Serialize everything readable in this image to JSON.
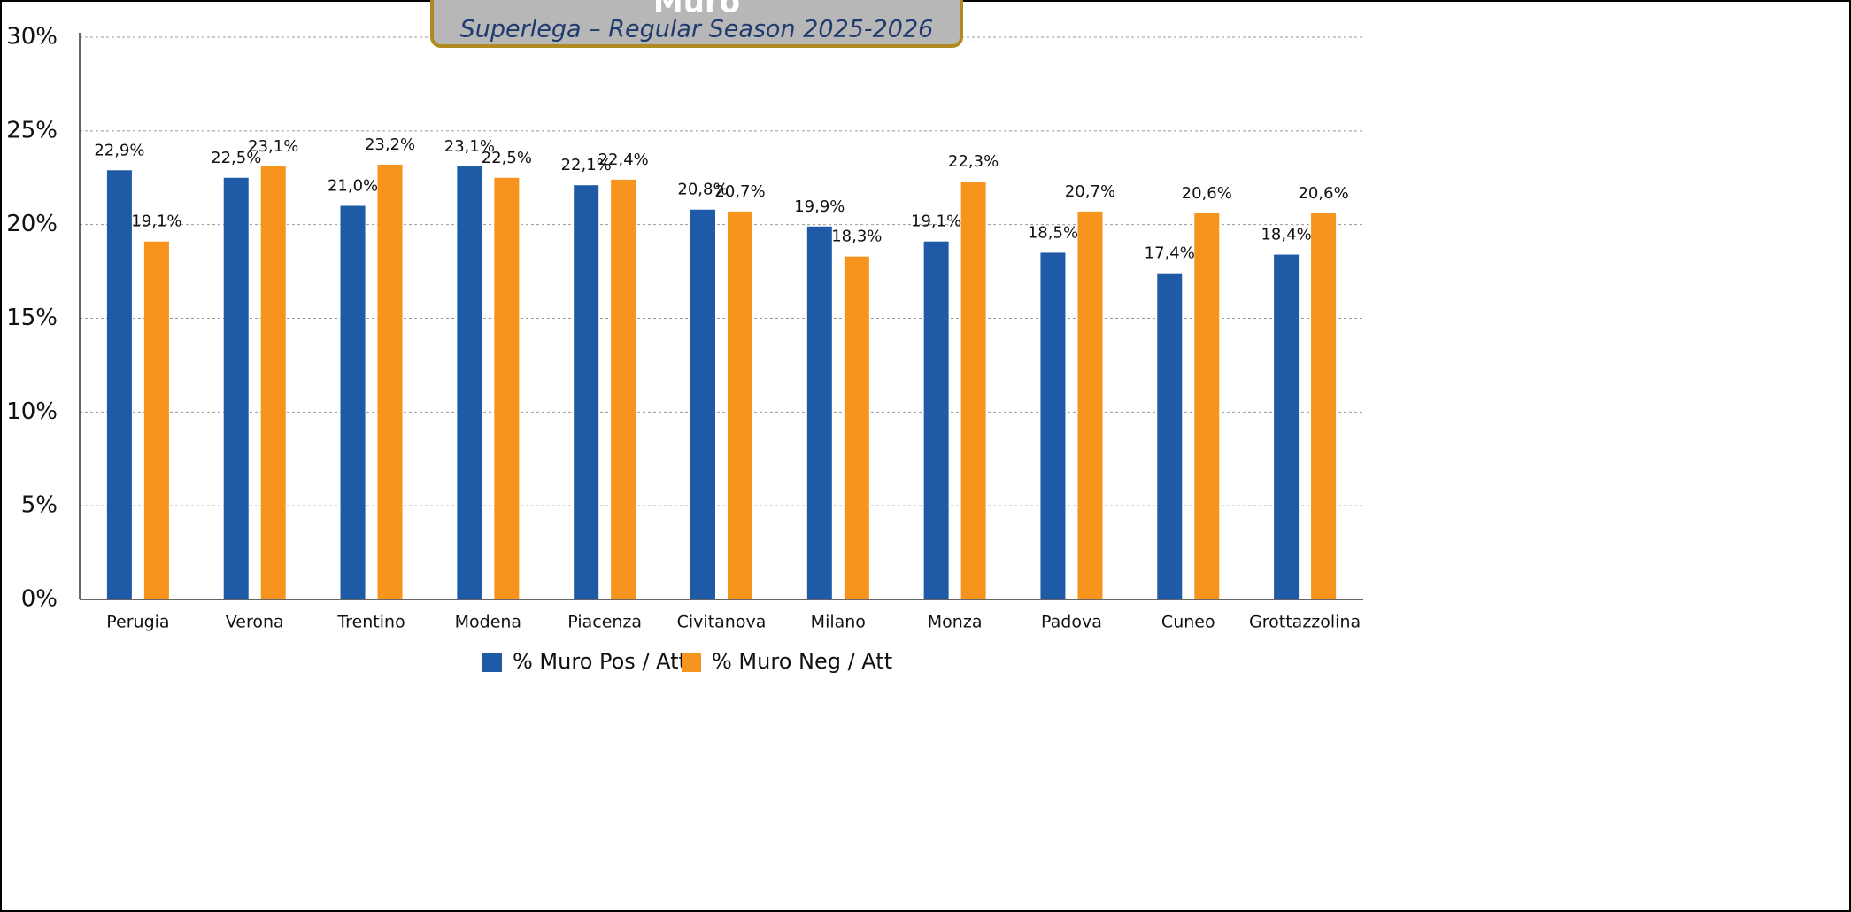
{
  "chart_data": {
    "type": "bar",
    "title": "Muro",
    "subtitle": "Superlega – Regular Season 2025-2026",
    "categories": [
      "Perugia",
      "Verona",
      "Trentino",
      "Modena",
      "Piacenza",
      "Civitanova",
      "Milano",
      "Monza",
      "Padova",
      "Cuneo",
      "Grottazzolina"
    ],
    "series": [
      {
        "name": "% Muro Pos / Att",
        "color": "#1f5aa6",
        "values": [
          22.9,
          22.5,
          21.0,
          23.1,
          22.1,
          20.8,
          19.9,
          19.1,
          18.5,
          17.4,
          18.4
        ],
        "value_labels": [
          "22,9%",
          "22,5%",
          "21,0%",
          "23,1%",
          "22,1%",
          "20,8%",
          "19,9%",
          "19,1%",
          "18,5%",
          "17,4%",
          "18,4%"
        ]
      },
      {
        "name": "% Muro Neg / Att",
        "color": "#f7941d",
        "values": [
          19.1,
          23.1,
          23.2,
          22.5,
          22.4,
          20.7,
          18.3,
          22.3,
          20.7,
          20.6,
          20.6
        ],
        "value_labels": [
          "19,1%",
          "23,1%",
          "23,2%",
          "22,5%",
          "22,4%",
          "20,7%",
          "18,3%",
          "22,3%",
          "20,7%",
          "20,6%",
          "20,6%"
        ]
      }
    ],
    "ylim": [
      0,
      30
    ],
    "yticks": [
      {
        "value": 0,
        "label": "0%"
      },
      {
        "value": 5,
        "label": "5%"
      },
      {
        "value": 10,
        "label": "10%"
      },
      {
        "value": 15,
        "label": "15%"
      },
      {
        "value": 20,
        "label": "20%"
      },
      {
        "value": 25,
        "label": "25%"
      },
      {
        "value": 30,
        "label": "30%"
      }
    ],
    "grid": true,
    "legend": "bottom"
  }
}
